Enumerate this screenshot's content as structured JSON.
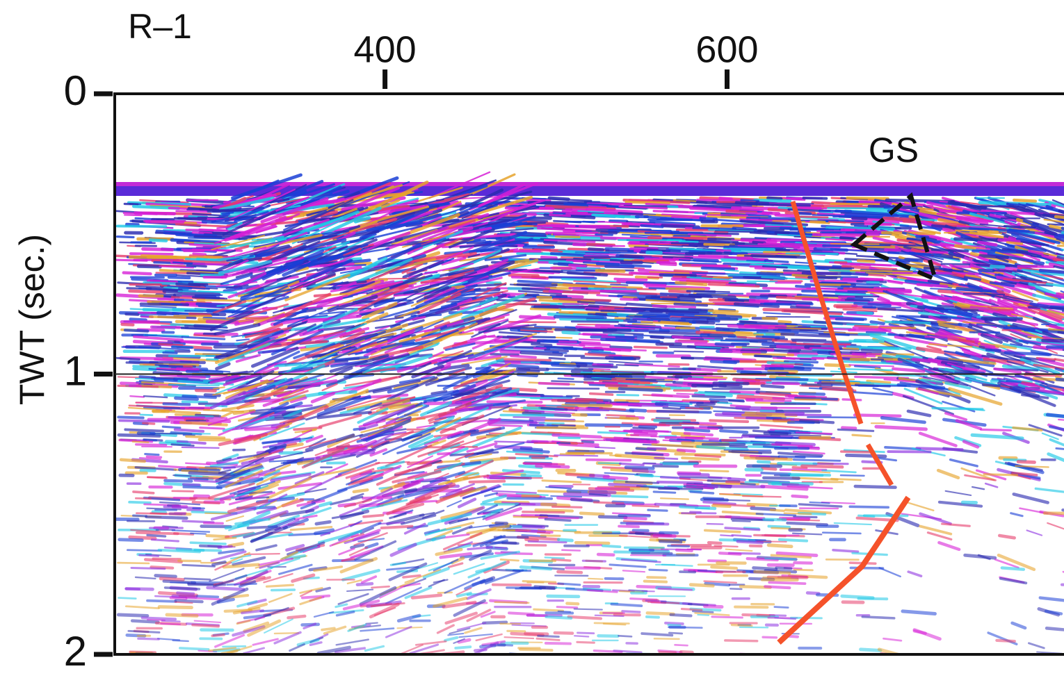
{
  "chart_data": {
    "type": "seismic-section",
    "title": "R–1",
    "ylabel": "TWT (sec.)",
    "xlim": [
      242,
      797
    ],
    "xticks": [
      400,
      600
    ],
    "ylim": [
      0,
      2
    ],
    "yticks": [
      0,
      1,
      2
    ],
    "hline": 1,
    "annotations": [
      "GS"
    ]
  }
}
